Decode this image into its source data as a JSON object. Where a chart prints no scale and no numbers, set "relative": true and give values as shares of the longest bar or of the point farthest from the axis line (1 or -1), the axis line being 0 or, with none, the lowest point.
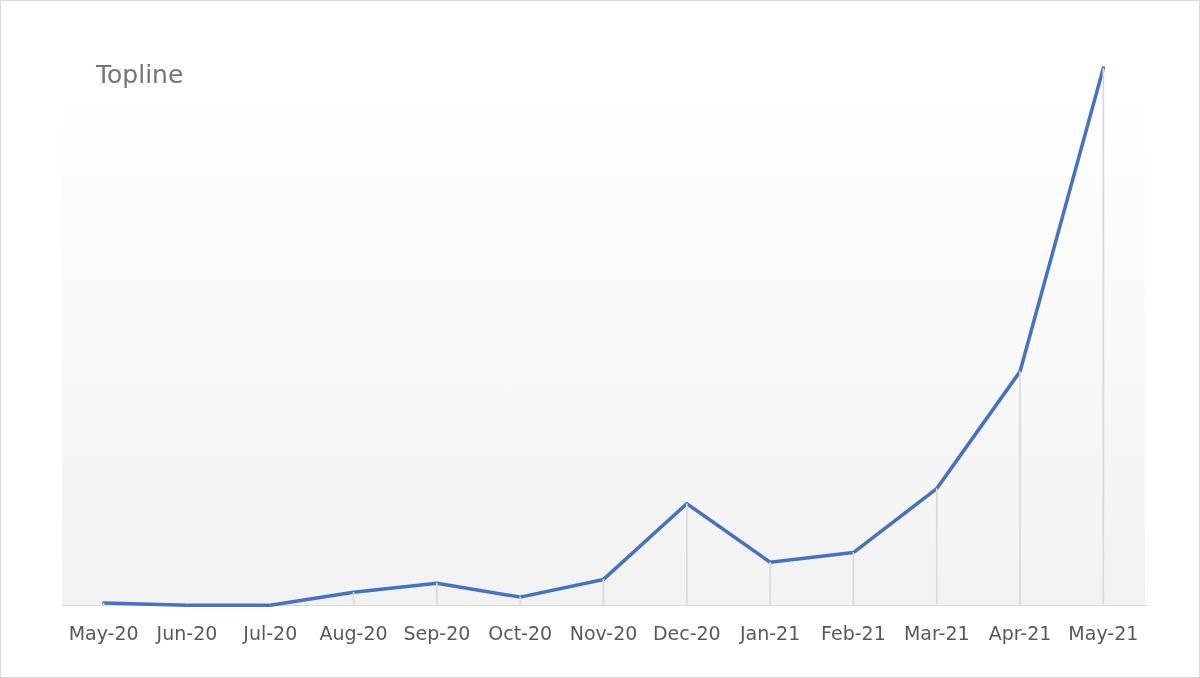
{
  "chart_data": {
    "type": "line",
    "title": "Topline",
    "categories": [
      "May-20",
      "Jun-20",
      "Jul-20",
      "Aug-20",
      "Sep-20",
      "Oct-20",
      "Nov-20",
      "Dec-20",
      "Jan-21",
      "Feb-21",
      "Mar-21",
      "Apr-21",
      "May-21"
    ],
    "relative": true,
    "series": [
      {
        "type": "bar",
        "color": "#d9d9d9",
        "values": [
          0.004,
          0.0,
          0.0,
          0.024,
          0.041,
          0.015,
          0.048,
          0.189,
          0.08,
          0.098,
          0.217,
          0.435,
          1
        ]
      },
      {
        "color": "#4472c4",
        "values": [
          0.004,
          0.0,
          0.0,
          0.024,
          0.041,
          0.015,
          0.048,
          0.189,
          0.08,
          0.098,
          0.217,
          0.435,
          1
        ]
      }
    ],
    "marker": "none",
    "grid": false,
    "legend": false
  }
}
